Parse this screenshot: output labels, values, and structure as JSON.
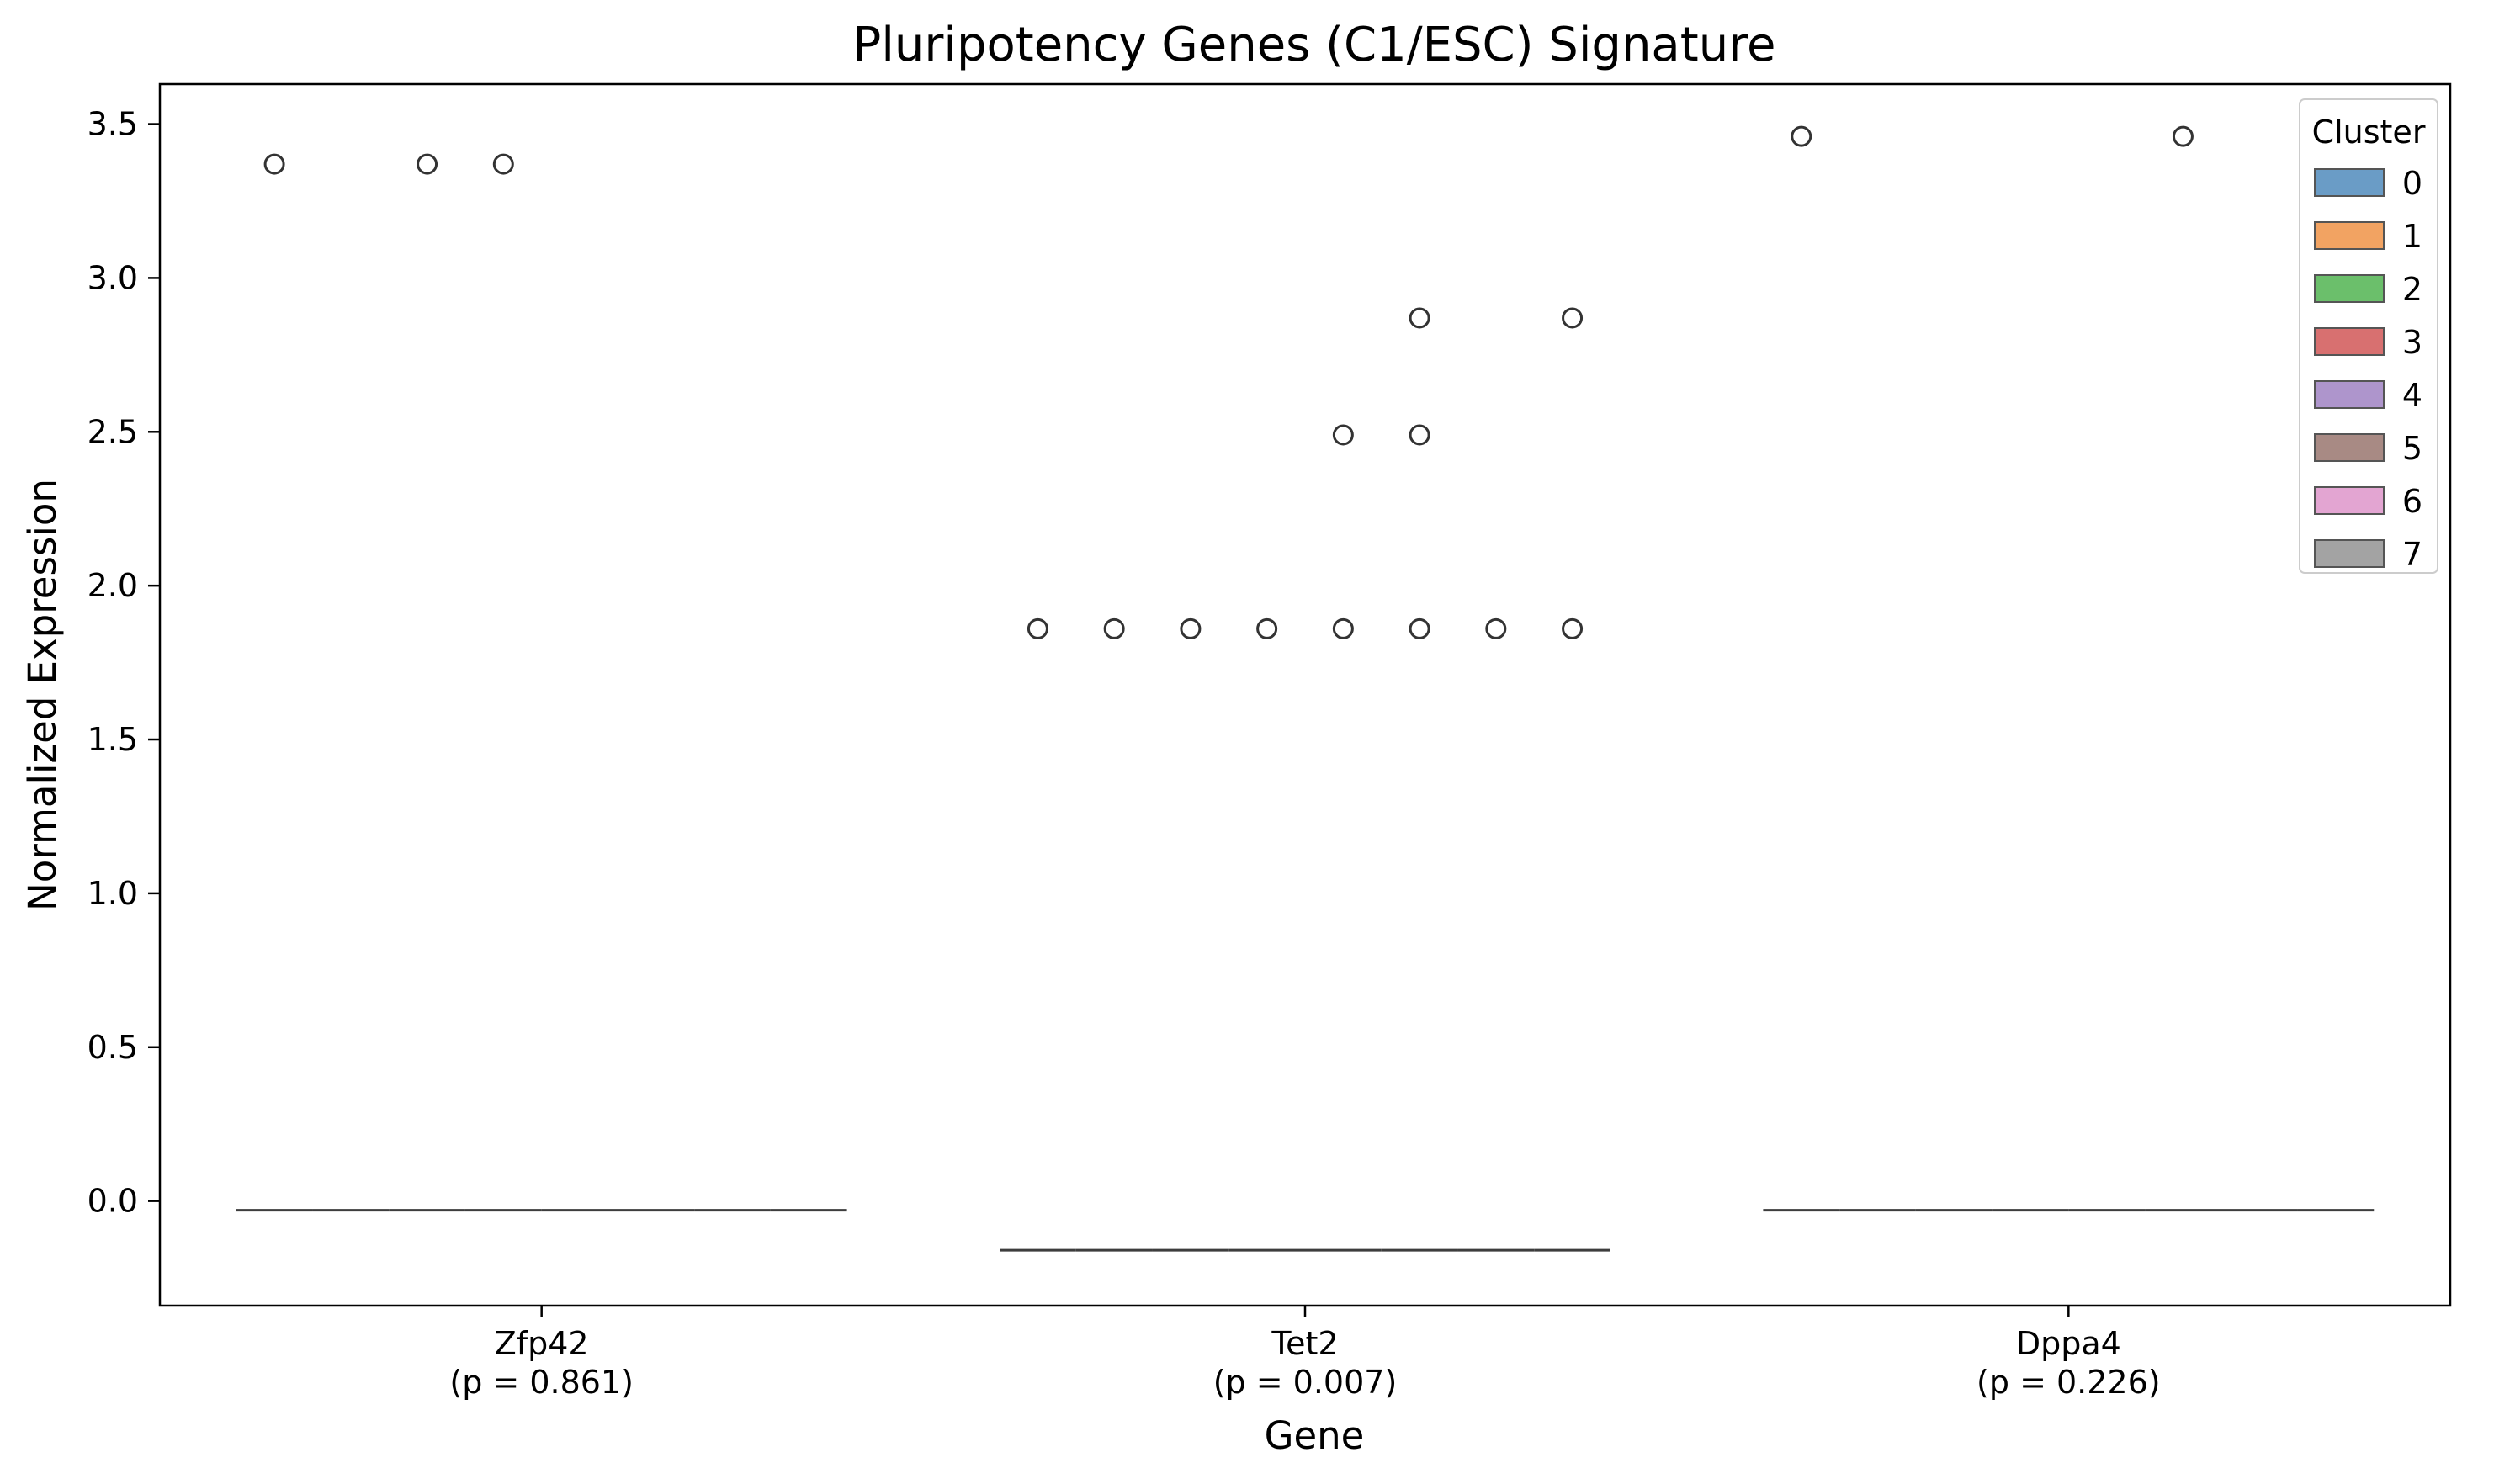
{
  "chart_data": {
    "type": "box",
    "title": "Pluripotency Genes (C1/ESC) Signature",
    "xlabel": "Gene",
    "ylabel": "Normalized Expression",
    "ylim": [
      -0.34,
      3.63
    ],
    "yticks": [
      "0.0",
      "0.5",
      "1.0",
      "1.5",
      "2.0",
      "2.5",
      "3.0",
      "3.5"
    ],
    "categories": [
      {
        "gene": "Zfp42",
        "pvalue": "(p = 0.861)"
      },
      {
        "gene": "Tet2",
        "pvalue": "(p = 0.007)"
      },
      {
        "gene": "Dppa4",
        "pvalue": "(p = 0.226)"
      }
    ],
    "legend": {
      "title": "Cluster",
      "placement": "top-right",
      "entries": [
        {
          "label": "0",
          "color": "#6a9cc6"
        },
        {
          "label": "1",
          "color": "#f2a362"
        },
        {
          "label": "2",
          "color": "#6bbf6b"
        },
        {
          "label": "3",
          "color": "#d87070"
        },
        {
          "label": "4",
          "color": "#ae95cc"
        },
        {
          "label": "5",
          "color": "#a88a84"
        },
        {
          "label": "6",
          "color": "#e3a5d2"
        },
        {
          "label": "7",
          "color": "#a3a3a3"
        }
      ]
    },
    "series": [
      {
        "cluster": "0",
        "median_by_gene": [
          -0.03,
          -0.16,
          -0.03
        ]
      },
      {
        "cluster": "1",
        "median_by_gene": [
          -0.03,
          -0.16,
          -0.03
        ]
      },
      {
        "cluster": "2",
        "median_by_gene": [
          -0.03,
          -0.16,
          -0.03
        ]
      },
      {
        "cluster": "3",
        "median_by_gene": [
          -0.03,
          -0.16,
          -0.03
        ]
      },
      {
        "cluster": "4",
        "median_by_gene": [
          -0.03,
          -0.16,
          -0.03
        ]
      },
      {
        "cluster": "5",
        "median_by_gene": [
          -0.03,
          -0.16,
          -0.03
        ]
      },
      {
        "cluster": "6",
        "median_by_gene": [
          -0.03,
          -0.16,
          -0.03
        ]
      },
      {
        "cluster": "7",
        "median_by_gene": [
          -0.03,
          -0.16,
          -0.03
        ]
      }
    ],
    "outliers": [
      {
        "gene": "Zfp42",
        "cluster": "0",
        "value": 3.37
      },
      {
        "gene": "Zfp42",
        "cluster": "2",
        "value": 3.37
      },
      {
        "gene": "Zfp42",
        "cluster": "3",
        "value": 3.37
      },
      {
        "gene": "Tet2",
        "cluster": "0",
        "value": 1.86
      },
      {
        "gene": "Tet2",
        "cluster": "1",
        "value": 1.86
      },
      {
        "gene": "Tet2",
        "cluster": "2",
        "value": 1.86
      },
      {
        "gene": "Tet2",
        "cluster": "3",
        "value": 1.86
      },
      {
        "gene": "Tet2",
        "cluster": "4",
        "value": 1.86
      },
      {
        "gene": "Tet2",
        "cluster": "4",
        "value": 2.49
      },
      {
        "gene": "Tet2",
        "cluster": "5",
        "value": 1.86
      },
      {
        "gene": "Tet2",
        "cluster": "5",
        "value": 2.49
      },
      {
        "gene": "Tet2",
        "cluster": "5",
        "value": 2.87
      },
      {
        "gene": "Tet2",
        "cluster": "6",
        "value": 1.86
      },
      {
        "gene": "Tet2",
        "cluster": "7",
        "value": 1.86
      },
      {
        "gene": "Tet2",
        "cluster": "7",
        "value": 2.87
      },
      {
        "gene": "Dppa4",
        "cluster": "0",
        "value": 3.46
      },
      {
        "gene": "Dppa4",
        "cluster": "5",
        "value": 3.46
      }
    ]
  }
}
